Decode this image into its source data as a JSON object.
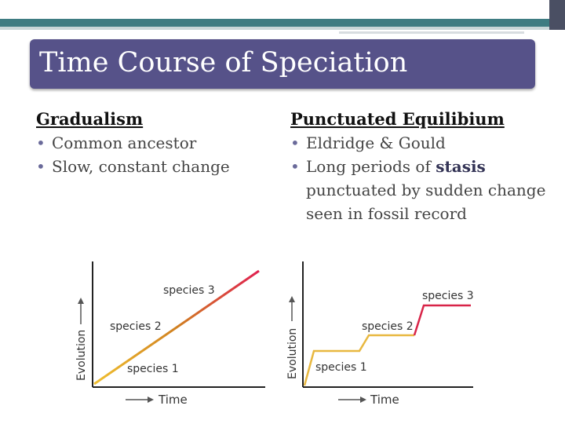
{
  "colors": {
    "title_bg": "#565289",
    "bar_dark": "#4a4f63",
    "bar_teal": "#3e7c82",
    "line_orange": "#e0a020",
    "line_red": "#d8244a"
  },
  "slide": {
    "title": "Time Course of Speciation"
  },
  "left": {
    "heading": "Gradualism",
    "bullets": [
      "Common ancestor",
      "Slow, constant change"
    ]
  },
  "right": {
    "heading": "Punctuated Equilibium",
    "bullet1": "Eldridge & Gould",
    "bullet2_prefix": "Long periods of ",
    "bullet2_bold": "stasis",
    "bullet2_cont1": "punctuated by sudden change",
    "bullet2_cont2": "seen in fossil record"
  },
  "chart_data": [
    {
      "type": "line",
      "xlabel": "Time",
      "ylabel": "Evolution",
      "labels": [
        "species 1",
        "species 2",
        "species 3"
      ]
    },
    {
      "type": "line",
      "xlabel": "Time",
      "ylabel": "Evolution",
      "labels": [
        "species 1",
        "species 2",
        "species 3"
      ]
    }
  ]
}
